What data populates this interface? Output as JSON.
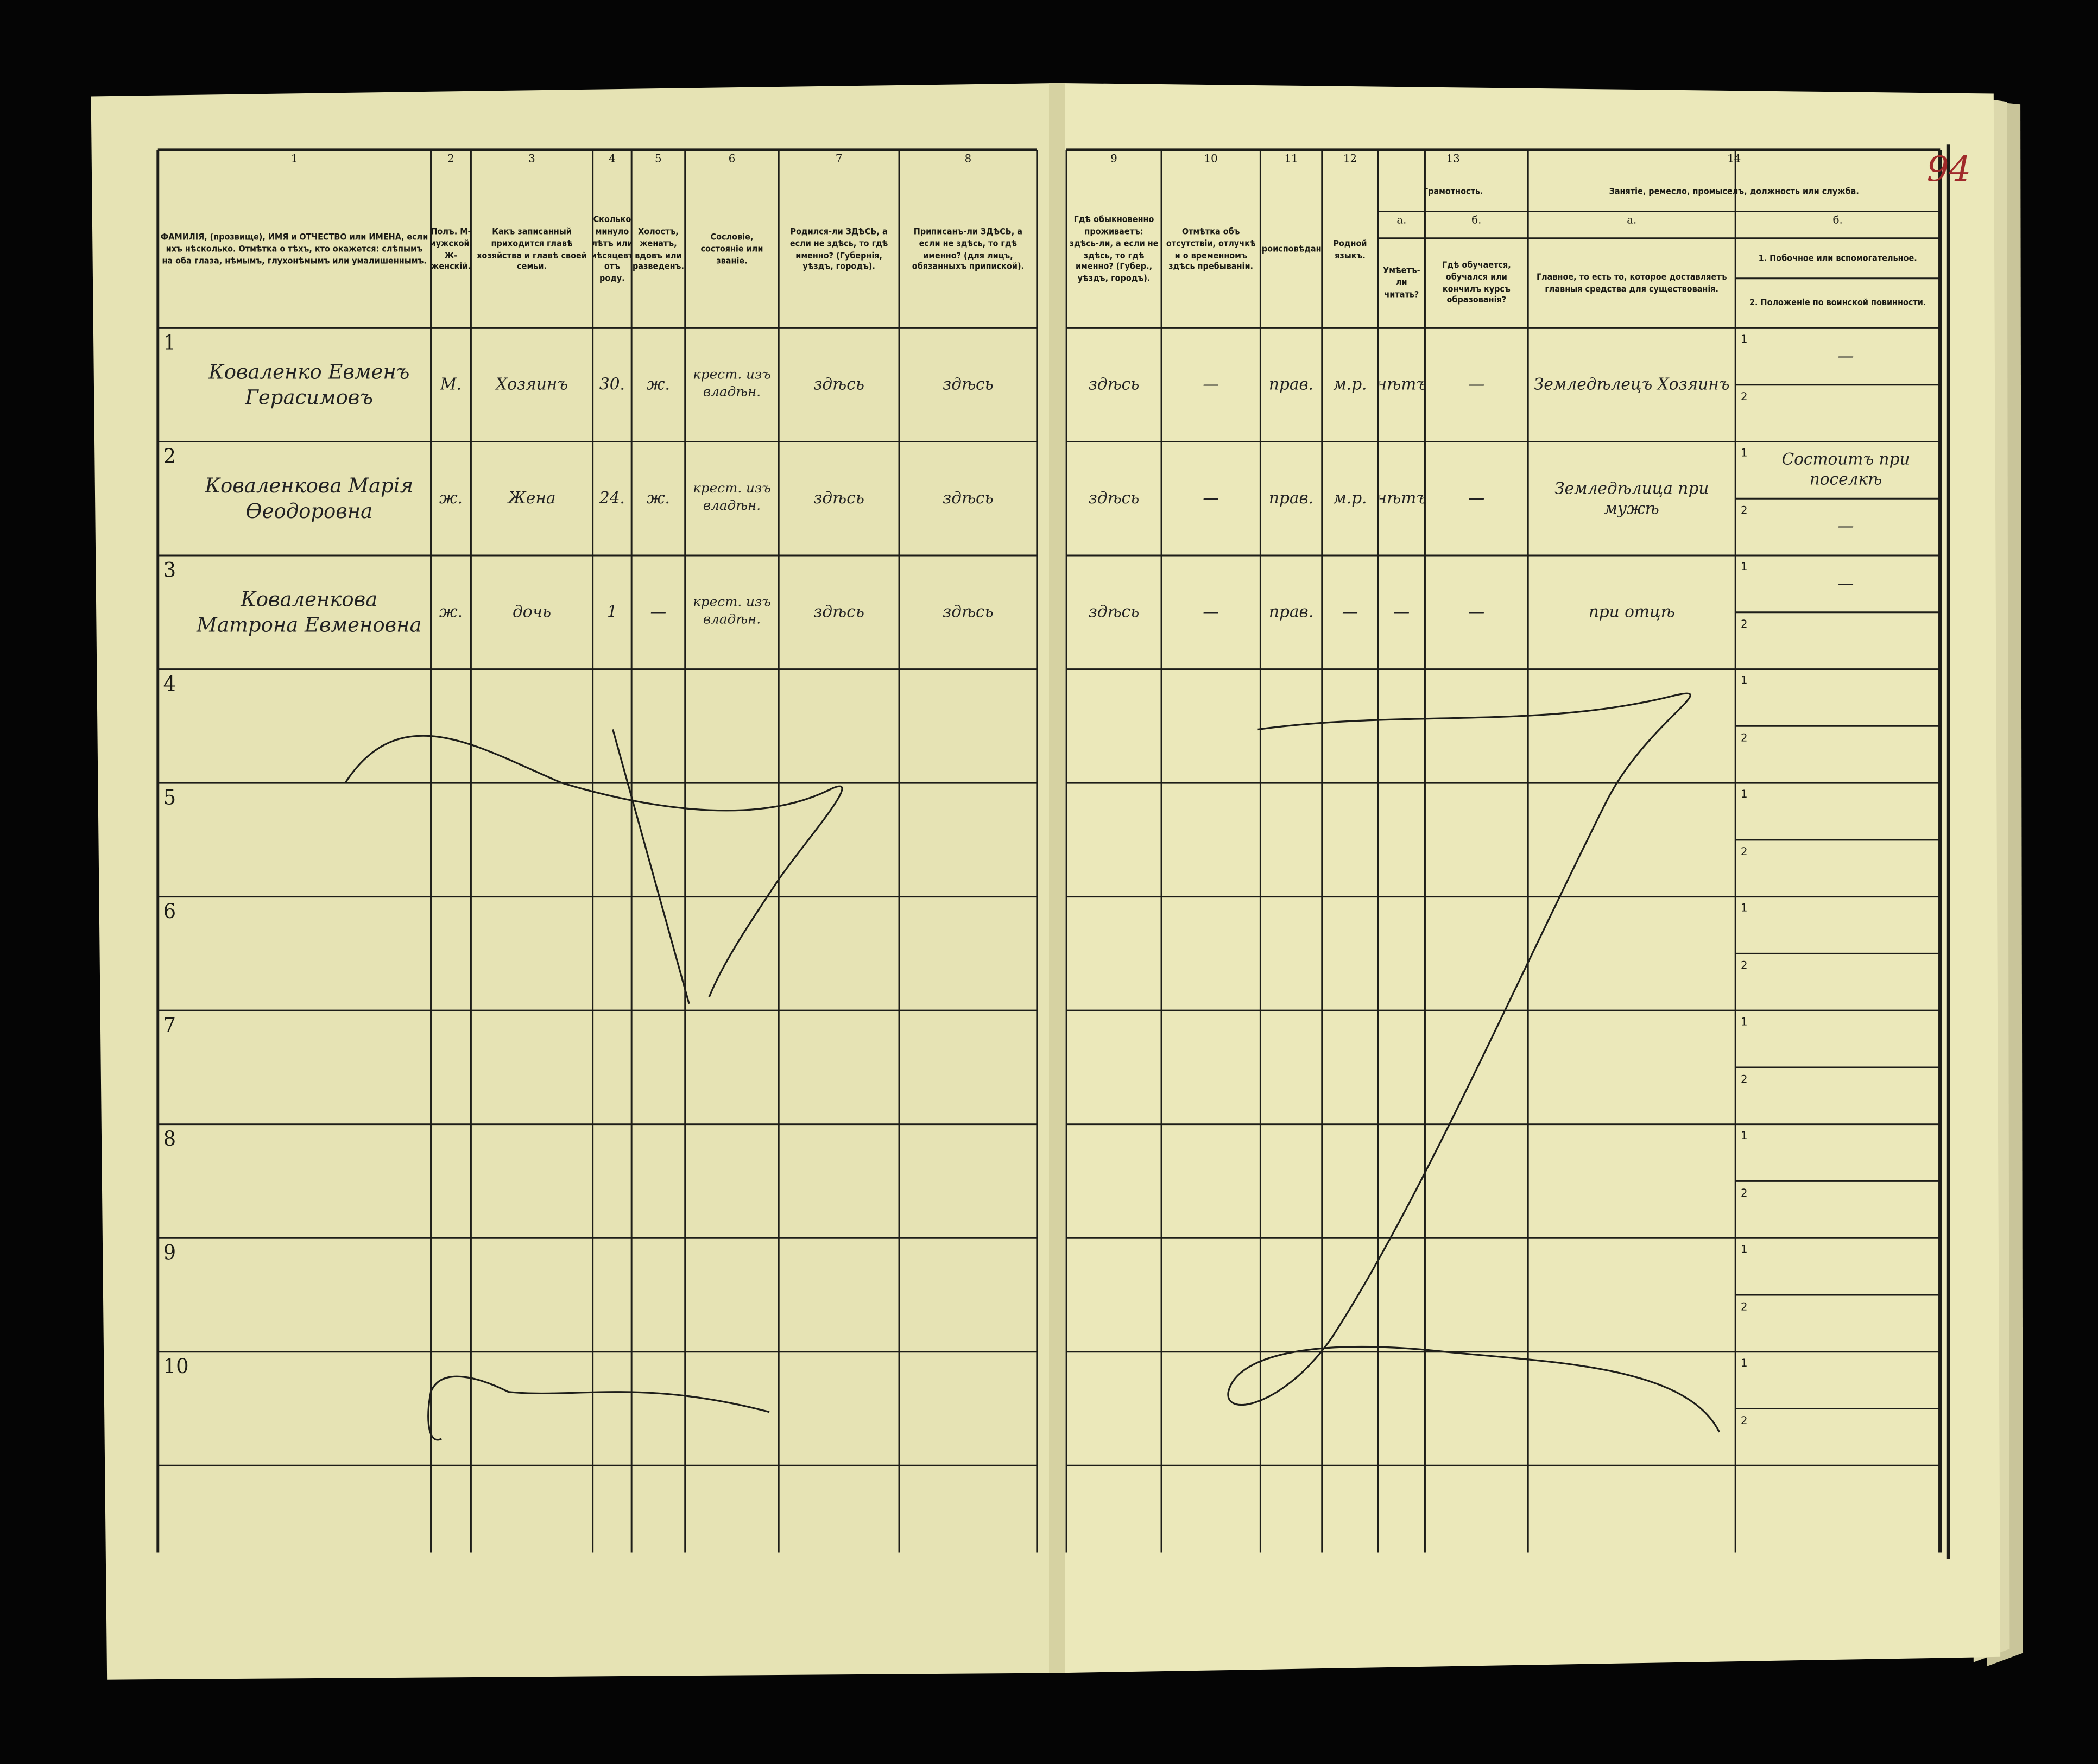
{
  "page_number": "94",
  "header": {
    "groups": [
      {
        "number": "13",
        "label": "Грамотность."
      },
      {
        "number": "14",
        "label": "Занятіе, ремесло, промыселъ, должность или служба."
      }
    ],
    "columns": [
      {
        "number": "1",
        "label": "ФАМИЛІЯ, (прозвище), ИМЯ и ОТЧЕСТВО или ИМЕНА, если ихъ нѣсколько. Отмѣтка о тѣхъ, кто окажется: слѣпымъ на оба глаза, нѣмымъ, глухонѣмымъ или умалишеннымъ."
      },
      {
        "number": "2",
        "label": "Полъ. М-мужской. Ж-женскій."
      },
      {
        "number": "3",
        "label": "Какъ записанный приходится главѣ хозяйства и главѣ своей семьи."
      },
      {
        "number": "4",
        "label": "Сколько минуло лѣтъ или мѣсяцевъ отъ роду."
      },
      {
        "number": "5",
        "label": "Холостъ, женатъ, вдовъ или разведенъ."
      },
      {
        "number": "6",
        "label": "Сословіе, состояніе или званіе."
      },
      {
        "number": "7",
        "label": "Родился-ли ЗДѢСЬ, а если не здѣсь, то гдѣ именно? (Губернія, уѣздъ, городъ)."
      },
      {
        "number": "8",
        "label": "Приписанъ-ли ЗДѢСЬ, а если не здѣсь, то гдѣ именно? (для лицъ, обязанныхъ припиской)."
      },
      {
        "number": "9",
        "label": "Гдѣ обыкновенно проживаетъ: здѣсь-ли, а если не здѣсь, то гдѣ именно? (Губер., уѣздъ, городъ)."
      },
      {
        "number": "10",
        "label": "Отмѣтка объ отсутствіи, отлучкѣ и о временномъ здѣсь пребываніи."
      },
      {
        "number": "11",
        "label": "Вѣроисповѣданіе."
      },
      {
        "number": "12",
        "label": "Родной языкъ."
      },
      {
        "number": "а.",
        "label": "Умѣетъ-ли читать?"
      },
      {
        "number": "б.",
        "label": "Гдѣ обучается, обучался или кончилъ курсъ образованія?"
      },
      {
        "number": "а.",
        "label": "Главное, то есть то, которое доставляетъ главныя средства для существованія."
      },
      {
        "number": "б.",
        "label": "1. Побочное или вспомогательное.",
        "label_2": "2. Положеніе по воинской повинности."
      }
    ]
  },
  "subrow_labels": [
    "1",
    "2"
  ],
  "rows": [
    {
      "number": "1",
      "cells": [
        "Коваленко Евменъ Герасимовъ",
        "М.",
        "Хозяинъ",
        "30.",
        "ж.",
        "крест. изъ владѣн.",
        "здѣсь",
        "здѣсь",
        "здѣсь",
        "—",
        "прав.",
        "м.р.",
        "нѣтъ",
        "—",
        "Земледѣлецъ Хозяинъ"
      ],
      "secondary": "—"
    },
    {
      "number": "2",
      "cells": [
        "Коваленкова Марія Өеодоровна",
        "ж.",
        "Жена",
        "24.",
        "ж.",
        "крест. изъ владѣн.",
        "здѣсь",
        "здѣсь",
        "здѣсь",
        "—",
        "прав.",
        "м.р.",
        "нѣтъ",
        "—",
        "Земледѣлица при мужѣ"
      ],
      "secondary": "Состоитъ при поселкѣ",
      "military": "—"
    },
    {
      "number": "3",
      "cells": [
        "Коваленкова Матрона Евменовна",
        "ж.",
        "дочь",
        "1",
        "—",
        "крест. изъ владѣн.",
        "здѣсь",
        "здѣсь",
        "здѣсь",
        "—",
        "прав.",
        "—",
        "—",
        "—",
        "при отцѣ"
      ],
      "secondary": "—"
    },
    {
      "number": "4"
    },
    {
      "number": "5"
    },
    {
      "number": "6"
    },
    {
      "number": "7"
    },
    {
      "number": "8"
    },
    {
      "number": "9"
    },
    {
      "number": "10"
    }
  ]
}
